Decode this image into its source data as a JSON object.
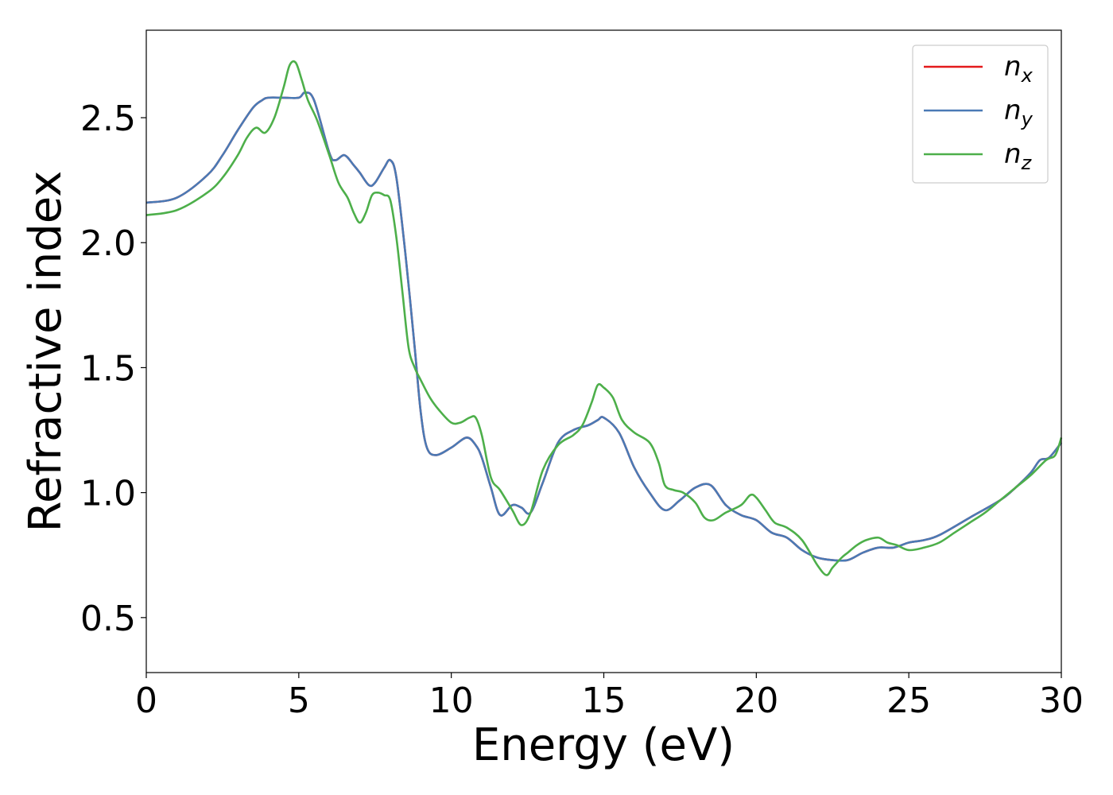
{
  "chart_data": {
    "type": "line",
    "xlabel": "Energy (eV)",
    "ylabel": "Refractive index",
    "xlim": [
      0,
      30
    ],
    "ylim": [
      0.28,
      2.85
    ],
    "xticks": [
      0,
      5,
      10,
      15,
      20,
      25,
      30
    ],
    "xtick_labels": [
      "0",
      "5",
      "10",
      "15",
      "20",
      "25",
      "30"
    ],
    "yticks": [
      0.5,
      1.0,
      1.5,
      2.0,
      2.5
    ],
    "ytick_labels": [
      "0.5",
      "1.0",
      "1.5",
      "2.0",
      "2.5"
    ],
    "grid": false,
    "legend_position": "top-right",
    "series": [
      {
        "name": "n_x",
        "legend_main": "n",
        "legend_sub": "x",
        "color": "#e41a1c",
        "x": [
          0,
          1,
          2,
          2.5,
          3,
          3.5,
          3.8,
          4.0,
          4.5,
          5.0,
          5.2,
          5.5,
          6.0,
          6.2,
          6.5,
          6.8,
          7.0,
          7.3,
          7.5,
          7.8,
          8.0,
          8.2,
          8.5,
          8.8,
          9.0,
          9.2,
          9.5,
          10.0,
          10.5,
          10.8,
          11.0,
          11.3,
          11.6,
          12.0,
          12.3,
          12.6,
          13.0,
          13.5,
          14.0,
          14.5,
          14.8,
          15.0,
          15.5,
          16.0,
          16.5,
          17.0,
          17.5,
          18.0,
          18.5,
          19.0,
          19.5,
          20.0,
          20.5,
          21.0,
          21.5,
          22.0,
          22.5,
          23.0,
          23.5,
          24.0,
          24.5,
          25.0,
          25.5,
          26.0,
          27.0,
          28.0,
          28.5,
          29.0,
          29.3,
          29.6,
          30.0
        ],
        "y": [
          2.16,
          2.18,
          2.27,
          2.35,
          2.45,
          2.54,
          2.57,
          2.58,
          2.58,
          2.58,
          2.6,
          2.57,
          2.36,
          2.33,
          2.35,
          2.31,
          2.28,
          2.23,
          2.24,
          2.3,
          2.33,
          2.26,
          1.95,
          1.58,
          1.32,
          1.18,
          1.15,
          1.18,
          1.22,
          1.19,
          1.14,
          1.02,
          0.91,
          0.95,
          0.94,
          0.92,
          1.04,
          1.2,
          1.25,
          1.27,
          1.29,
          1.3,
          1.24,
          1.1,
          1.0,
          0.93,
          0.97,
          1.02,
          1.03,
          0.95,
          0.91,
          0.89,
          0.84,
          0.82,
          0.77,
          0.74,
          0.73,
          0.73,
          0.76,
          0.78,
          0.78,
          0.8,
          0.81,
          0.83,
          0.9,
          0.97,
          1.02,
          1.08,
          1.13,
          1.14,
          1.2
        ]
      },
      {
        "name": "n_y",
        "legend_main": "n",
        "legend_sub": "y",
        "color": "#4a7ab5",
        "x": [
          0,
          1,
          2,
          2.5,
          3,
          3.5,
          3.8,
          4.0,
          4.5,
          5.0,
          5.2,
          5.5,
          6.0,
          6.2,
          6.5,
          6.8,
          7.0,
          7.3,
          7.5,
          7.8,
          8.0,
          8.2,
          8.5,
          8.8,
          9.0,
          9.2,
          9.5,
          10.0,
          10.5,
          10.8,
          11.0,
          11.3,
          11.6,
          12.0,
          12.3,
          12.6,
          13.0,
          13.5,
          14.0,
          14.5,
          14.8,
          15.0,
          15.5,
          16.0,
          16.5,
          17.0,
          17.5,
          18.0,
          18.5,
          19.0,
          19.5,
          20.0,
          20.5,
          21.0,
          21.5,
          22.0,
          22.5,
          23.0,
          23.5,
          24.0,
          24.5,
          25.0,
          25.5,
          26.0,
          27.0,
          28.0,
          28.5,
          29.0,
          29.3,
          29.6,
          30.0
        ],
        "y": [
          2.16,
          2.18,
          2.27,
          2.35,
          2.45,
          2.54,
          2.57,
          2.58,
          2.58,
          2.58,
          2.6,
          2.57,
          2.36,
          2.33,
          2.35,
          2.31,
          2.28,
          2.23,
          2.24,
          2.3,
          2.33,
          2.26,
          1.95,
          1.58,
          1.32,
          1.18,
          1.15,
          1.18,
          1.22,
          1.19,
          1.14,
          1.02,
          0.91,
          0.95,
          0.94,
          0.92,
          1.04,
          1.2,
          1.25,
          1.27,
          1.29,
          1.3,
          1.24,
          1.1,
          1.0,
          0.93,
          0.97,
          1.02,
          1.03,
          0.95,
          0.91,
          0.89,
          0.84,
          0.82,
          0.77,
          0.74,
          0.73,
          0.73,
          0.76,
          0.78,
          0.78,
          0.8,
          0.81,
          0.83,
          0.9,
          0.97,
          1.02,
          1.08,
          1.13,
          1.14,
          1.2
        ]
      },
      {
        "name": "n_z",
        "legend_main": "n",
        "legend_sub": "z",
        "color": "#4daf4a",
        "x": [
          0,
          1,
          2,
          2.5,
          3,
          3.3,
          3.6,
          3.9,
          4.2,
          4.5,
          4.7,
          4.9,
          5.1,
          5.3,
          5.6,
          6.0,
          6.3,
          6.6,
          6.8,
          7.0,
          7.2,
          7.4,
          7.6,
          7.8,
          8.0,
          8.2,
          8.4,
          8.6,
          8.8,
          9.0,
          9.3,
          9.6,
          10.0,
          10.3,
          10.6,
          10.8,
          11.0,
          11.3,
          11.6,
          12.0,
          12.3,
          12.6,
          13.0,
          13.5,
          14.0,
          14.3,
          14.6,
          14.8,
          15.0,
          15.3,
          15.6,
          16.0,
          16.5,
          16.8,
          17.0,
          17.3,
          17.6,
          18.0,
          18.3,
          18.6,
          19.0,
          19.5,
          19.8,
          20.0,
          20.3,
          20.6,
          21.0,
          21.5,
          22.0,
          22.3,
          22.5,
          22.8,
          23.0,
          23.3,
          23.6,
          24.0,
          24.3,
          24.6,
          25.0,
          25.5,
          26.0,
          26.5,
          27.0,
          27.5,
          28.0,
          28.5,
          29.0,
          29.5,
          29.8,
          30.0
        ],
        "y": [
          2.11,
          2.13,
          2.2,
          2.26,
          2.35,
          2.42,
          2.46,
          2.44,
          2.5,
          2.62,
          2.71,
          2.72,
          2.65,
          2.57,
          2.49,
          2.35,
          2.24,
          2.18,
          2.12,
          2.08,
          2.12,
          2.19,
          2.2,
          2.19,
          2.17,
          2.02,
          1.8,
          1.58,
          1.5,
          1.45,
          1.38,
          1.33,
          1.28,
          1.28,
          1.3,
          1.3,
          1.23,
          1.06,
          1.01,
          0.93,
          0.87,
          0.92,
          1.09,
          1.19,
          1.23,
          1.27,
          1.36,
          1.43,
          1.42,
          1.38,
          1.29,
          1.24,
          1.2,
          1.12,
          1.03,
          1.01,
          1.0,
          0.96,
          0.9,
          0.89,
          0.92,
          0.95,
          0.99,
          0.98,
          0.93,
          0.88,
          0.86,
          0.81,
          0.71,
          0.67,
          0.7,
          0.74,
          0.76,
          0.79,
          0.81,
          0.82,
          0.8,
          0.79,
          0.77,
          0.78,
          0.8,
          0.84,
          0.88,
          0.92,
          0.97,
          1.02,
          1.07,
          1.13,
          1.15,
          1.22
        ]
      }
    ]
  }
}
